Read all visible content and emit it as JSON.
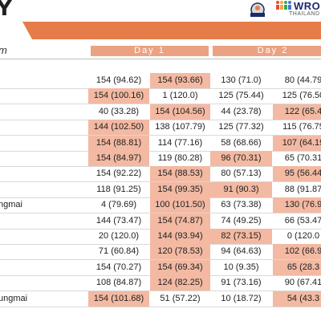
{
  "header": {
    "title_fragment": "Y",
    "team_column_label": "m",
    "days": [
      "Day 1",
      "Day 2"
    ],
    "logo_text": "WRO",
    "logo_subtext": "THAILAND"
  },
  "colors": {
    "accent": "#e57c4a",
    "highlight": "#f3b9a2",
    "day_header": "#eba283"
  },
  "rows": [
    {
      "name": "",
      "cells": [
        {
          "text": "154 (94.62)",
          "hl": false
        },
        {
          "text": "154 (93.66)",
          "hl": true
        },
        {
          "text": "130 (71.0)",
          "hl": false
        },
        {
          "text": "80 (44.79",
          "hl": false
        }
      ]
    },
    {
      "name": "",
      "cells": [
        {
          "text": "154 (100.16)",
          "hl": true
        },
        {
          "text": "1 (120.0)",
          "hl": false
        },
        {
          "text": "125 (75.44)",
          "hl": false
        },
        {
          "text": "125 (76.50",
          "hl": false
        }
      ]
    },
    {
      "name": "",
      "cells": [
        {
          "text": "40 (33.28)",
          "hl": false
        },
        {
          "text": "154 (104.56)",
          "hl": true
        },
        {
          "text": "44 (23.78)",
          "hl": false
        },
        {
          "text": "122 (65.4",
          "hl": true
        }
      ]
    },
    {
      "name": "",
      "cells": [
        {
          "text": "144 (102.50)",
          "hl": true
        },
        {
          "text": "138 (107.79)",
          "hl": false
        },
        {
          "text": "125 (77.32)",
          "hl": false
        },
        {
          "text": "115 (76.75",
          "hl": false
        }
      ]
    },
    {
      "name": "",
      "cells": [
        {
          "text": "154 (88.81)",
          "hl": true
        },
        {
          "text": "114 (77.16)",
          "hl": false
        },
        {
          "text": "58 (68.66)",
          "hl": false
        },
        {
          "text": "107 (64.19",
          "hl": true
        }
      ]
    },
    {
      "name": "",
      "cells": [
        {
          "text": "154 (84.97)",
          "hl": true
        },
        {
          "text": "119 (80.28)",
          "hl": false
        },
        {
          "text": "96 (70.31)",
          "hl": true
        },
        {
          "text": "65 (70.31",
          "hl": false
        }
      ]
    },
    {
      "name": "",
      "cells": [
        {
          "text": "154 (92.22)",
          "hl": false
        },
        {
          "text": "154 (88.53)",
          "hl": true
        },
        {
          "text": "80 (57.13)",
          "hl": false
        },
        {
          "text": "95 (56.44",
          "hl": true
        }
      ]
    },
    {
      "name": "",
      "cells": [
        {
          "text": "118 (91.25)",
          "hl": false
        },
        {
          "text": "154 (99.35)",
          "hl": true
        },
        {
          "text": "91 (90.3)",
          "hl": true
        },
        {
          "text": "88 (91.87",
          "hl": false
        }
      ]
    },
    {
      "name": "ngmai",
      "cells": [
        {
          "text": "4 (79.69)",
          "hl": false
        },
        {
          "text": "100 (101.50)",
          "hl": true
        },
        {
          "text": "63 (73.38)",
          "hl": false
        },
        {
          "text": "130 (76.9",
          "hl": true
        }
      ]
    },
    {
      "name": "",
      "cells": [
        {
          "text": "144 (73.47)",
          "hl": false
        },
        {
          "text": "154 (74.87)",
          "hl": true
        },
        {
          "text": "74 (49.25)",
          "hl": false
        },
        {
          "text": "66 (53.47",
          "hl": false
        }
      ]
    },
    {
      "name": "",
      "cells": [
        {
          "text": "20 (120.0)",
          "hl": false
        },
        {
          "text": "144 (93.94)",
          "hl": true
        },
        {
          "text": "82 (73.15)",
          "hl": true
        },
        {
          "text": "0 (120.0",
          "hl": false
        }
      ]
    },
    {
      "name": "",
      "cells": [
        {
          "text": "71 (60.84)",
          "hl": false
        },
        {
          "text": "120 (78.53)",
          "hl": true
        },
        {
          "text": "94 (64.63)",
          "hl": false
        },
        {
          "text": "102 (66.9",
          "hl": true
        }
      ]
    },
    {
      "name": "",
      "cells": [
        {
          "text": "154 (70.27)",
          "hl": false
        },
        {
          "text": "154 (69.34)",
          "hl": true
        },
        {
          "text": "10 (9.35)",
          "hl": false
        },
        {
          "text": "65 (28.3",
          "hl": true
        }
      ]
    },
    {
      "name": "",
      "cells": [
        {
          "text": "108 (84.87)",
          "hl": false
        },
        {
          "text": "124 (82.25)",
          "hl": true
        },
        {
          "text": "91 (73.16)",
          "hl": false
        },
        {
          "text": "90 (67.41",
          "hl": false
        }
      ]
    },
    {
      "name": "ungmai",
      "cells": [
        {
          "text": "154 (101.68)",
          "hl": true
        },
        {
          "text": "51 (57.22)",
          "hl": false
        },
        {
          "text": "10 (18.72)",
          "hl": false
        },
        {
          "text": "54 (43.3",
          "hl": true
        }
      ]
    }
  ]
}
